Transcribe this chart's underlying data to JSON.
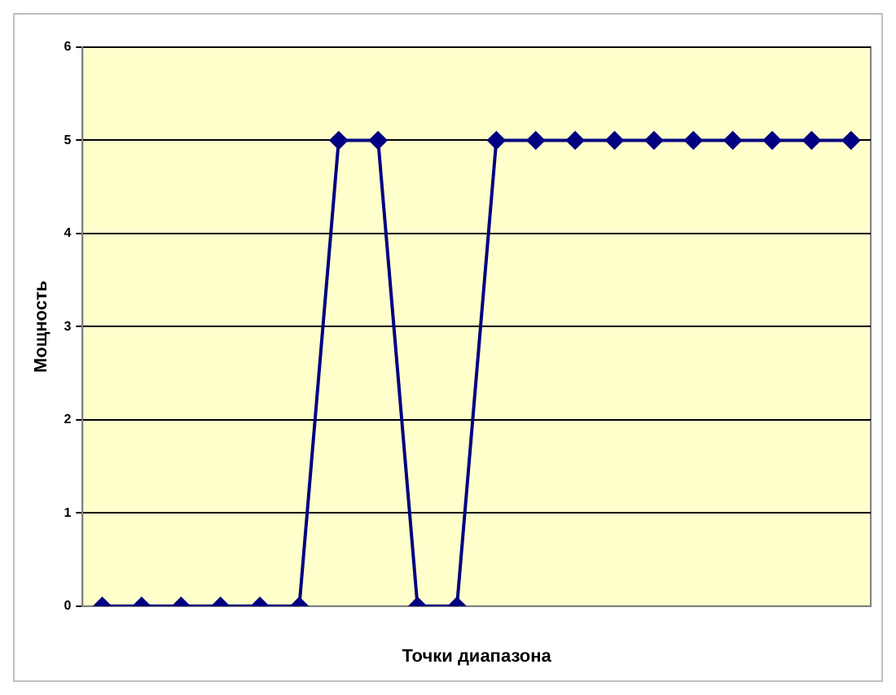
{
  "chart_data": {
    "type": "line",
    "xlabel": "Точки диапазона",
    "ylabel": "Мощность",
    "categories": [
      null,
      null,
      null,
      null,
      null,
      null,
      null,
      null,
      null,
      null,
      null,
      null,
      null,
      null,
      null,
      null,
      null,
      null,
      null,
      null
    ],
    "series": [
      {
        "color": "#000080",
        "values": [
          0,
          0,
          0,
          0,
          0,
          0,
          5,
          5,
          0,
          0,
          5,
          5,
          5,
          5,
          5,
          5,
          5,
          5,
          5,
          5
        ]
      }
    ],
    "ylim": [
      0,
      6
    ],
    "yticks": [
      0,
      1,
      2,
      3,
      4,
      5,
      6
    ],
    "grid": "y",
    "legend": false,
    "marker": "diamond",
    "line_style": "solid"
  }
}
